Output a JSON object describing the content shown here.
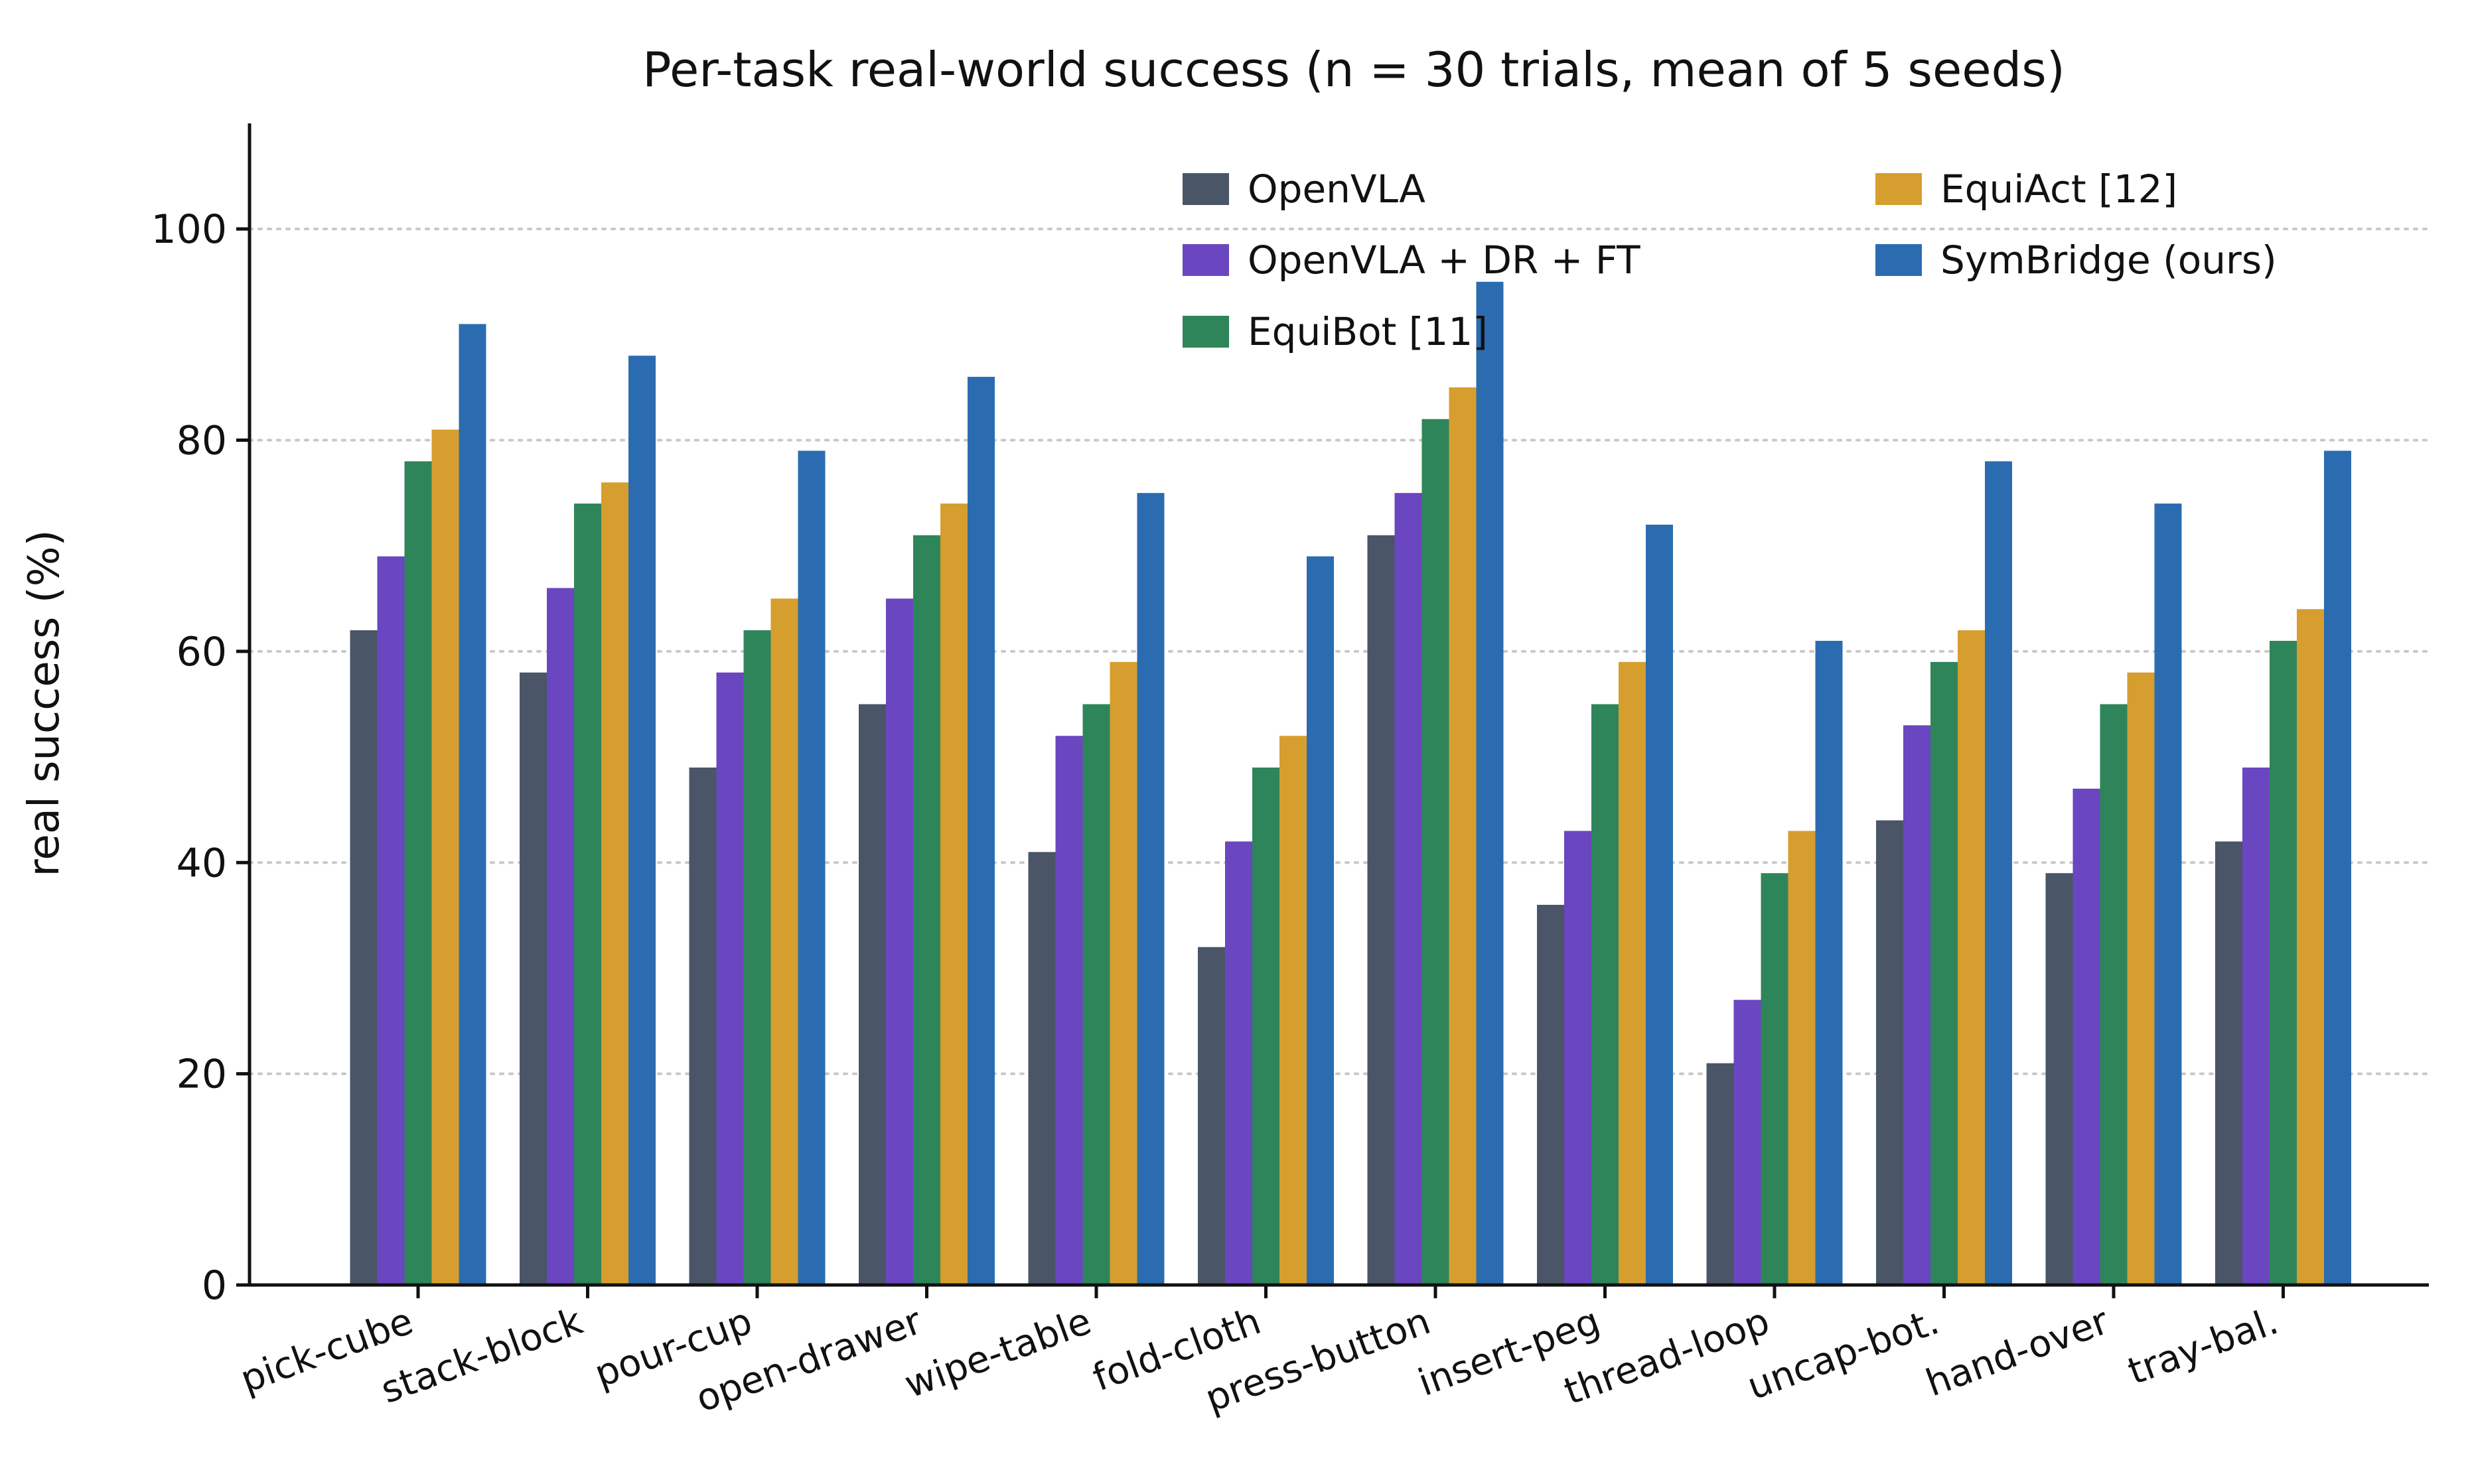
{
  "chart_data": {
    "type": "bar",
    "title": "Per-task real-world success (n = 30 trials, mean of 5 seeds)",
    "xlabel": "",
    "ylabel": "real success (%)",
    "ylim": [
      0,
      110
    ],
    "yticks": [
      0,
      20,
      40,
      60,
      80,
      100
    ],
    "grid": "y-dotted",
    "legend_position": "top-right",
    "categories": [
      "pick-cube",
      "stack-block",
      "pour-cup",
      "open-drawer",
      "wipe-table",
      "fold-cloth",
      "press-button",
      "insert-peg",
      "thread-loop",
      "uncap-bot.",
      "hand-over",
      "tray-bal."
    ],
    "series": [
      {
        "name": "OpenVLA",
        "color": "#4a5568",
        "values": [
          62,
          58,
          49,
          55,
          41,
          32,
          71,
          36,
          21,
          44,
          39,
          42
        ]
      },
      {
        "name": "OpenVLA + DR + FT",
        "color": "#6b46c1",
        "values": [
          69,
          66,
          58,
          65,
          52,
          42,
          75,
          43,
          27,
          53,
          47,
          49
        ]
      },
      {
        "name": "EquiBot [11]",
        "color": "#2f855a",
        "values": [
          78,
          74,
          62,
          71,
          55,
          49,
          82,
          55,
          39,
          59,
          55,
          61
        ]
      },
      {
        "name": "EquiAct [12]",
        "color": "#d69e2e",
        "values": [
          81,
          76,
          65,
          74,
          59,
          52,
          85,
          59,
          43,
          62,
          58,
          64
        ]
      },
      {
        "name": "SymBridge (ours)",
        "color": "#2b6cb0",
        "values": [
          91,
          88,
          79,
          86,
          75,
          69,
          95,
          72,
          61,
          78,
          74,
          79
        ]
      }
    ]
  }
}
